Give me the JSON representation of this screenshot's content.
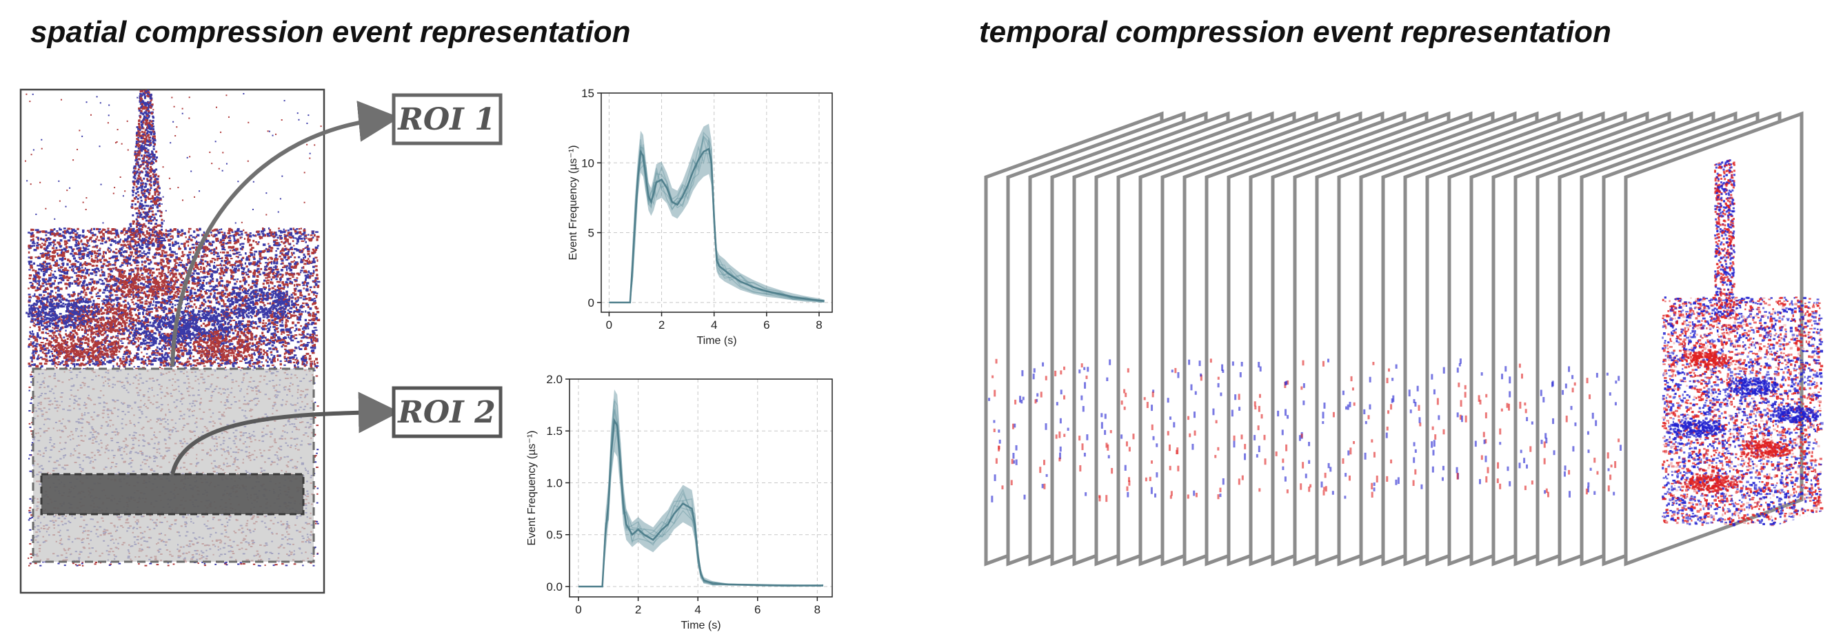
{
  "titles": {
    "spatial": "spatial compression event representation",
    "temporal": "temporal compression event representation"
  },
  "roi_labels": {
    "roi1": "ROI 1",
    "roi2": "ROI 2"
  },
  "colors": {
    "positive_event": "#b03a3a",
    "negative_event": "#3a3aa8",
    "signal": "#5a8b98",
    "frame_border": "#888888"
  },
  "chart_data": [
    {
      "type": "line",
      "title": "",
      "xlabel": "Time (s)",
      "ylabel": "Event Frequency (µs⁻¹)",
      "xlim": [
        -0.3,
        8.5
      ],
      "ylim": [
        -0.7,
        15
      ],
      "x_ticks": [
        0,
        2,
        4,
        6,
        8
      ],
      "y_ticks": [
        0,
        5,
        10,
        15
      ],
      "y_tick_labels": [
        "0",
        "5",
        "10",
        "15"
      ],
      "grid": true,
      "series": [
        {
          "x": [
            0,
            0.5,
            0.8,
            0.9,
            1.0,
            1.1,
            1.2,
            1.3,
            1.4,
            1.5,
            1.6,
            1.7,
            1.8,
            2.0,
            2.2,
            2.4,
            2.6,
            2.8,
            3.0,
            3.2,
            3.4,
            3.6,
            3.8,
            3.9,
            4.0,
            4.1,
            4.2,
            4.4,
            4.6,
            5.0,
            5.5,
            6.0,
            6.5,
            7.0,
            7.5,
            8.0,
            8.2
          ],
          "y": [
            0,
            0,
            0,
            3.0,
            6.0,
            9.0,
            10.8,
            10.5,
            9.0,
            7.6,
            7.2,
            7.8,
            8.6,
            8.8,
            8.2,
            7.2,
            7.0,
            7.6,
            8.4,
            9.4,
            10.2,
            10.8,
            11.0,
            10.0,
            6.0,
            3.0,
            2.6,
            2.3,
            2.0,
            1.5,
            1.1,
            0.8,
            0.6,
            0.4,
            0.25,
            0.15,
            0.1
          ],
          "band": [
            0,
            0,
            0,
            1.5,
            1.8,
            1.5,
            1.5,
            1.5,
            1.2,
            1.0,
            1.0,
            1.2,
            1.3,
            1.3,
            1.1,
            1.0,
            1.0,
            1.1,
            1.3,
            1.4,
            1.6,
            1.8,
            1.8,
            1.6,
            1.0,
            0.8,
            0.8,
            0.8,
            0.7,
            0.6,
            0.5,
            0.4,
            0.3,
            0.25,
            0.2,
            0.15,
            0.1
          ]
        }
      ]
    },
    {
      "type": "line",
      "title": "",
      "xlabel": "Time (s)",
      "ylabel": "Event Frequency (µs⁻¹)",
      "xlim": [
        -0.3,
        8.5
      ],
      "ylim": [
        -0.1,
        2.0
      ],
      "x_ticks": [
        0,
        2,
        4,
        6,
        8
      ],
      "y_ticks": [
        0.0,
        0.5,
        1.0,
        1.5,
        2.0
      ],
      "y_tick_labels": [
        "0.0",
        "0.5",
        "1.0",
        "1.5",
        "2.0"
      ],
      "grid": true,
      "series": [
        {
          "x": [
            0,
            0.5,
            0.8,
            0.9,
            1.0,
            1.1,
            1.2,
            1.3,
            1.4,
            1.5,
            1.6,
            1.8,
            2.0,
            2.2,
            2.5,
            2.8,
            3.0,
            3.2,
            3.5,
            3.8,
            3.9,
            4.0,
            4.1,
            4.2,
            4.5,
            5.0,
            6.0,
            7.0,
            8.0,
            8.2
          ],
          "y": [
            0,
            0,
            0,
            0.5,
            0.8,
            1.3,
            1.6,
            1.55,
            1.2,
            0.8,
            0.6,
            0.5,
            0.55,
            0.5,
            0.45,
            0.55,
            0.6,
            0.7,
            0.8,
            0.75,
            0.6,
            0.3,
            0.12,
            0.06,
            0.03,
            0.02,
            0.015,
            0.01,
            0.01,
            0.01
          ],
          "band": [
            0,
            0,
            0,
            0.2,
            0.2,
            0.25,
            0.3,
            0.3,
            0.25,
            0.2,
            0.15,
            0.12,
            0.12,
            0.12,
            0.12,
            0.13,
            0.14,
            0.15,
            0.18,
            0.18,
            0.15,
            0.1,
            0.05,
            0.03,
            0.02,
            0.01,
            0.01,
            0.01,
            0.01,
            0.01
          ]
        }
      ]
    }
  ]
}
